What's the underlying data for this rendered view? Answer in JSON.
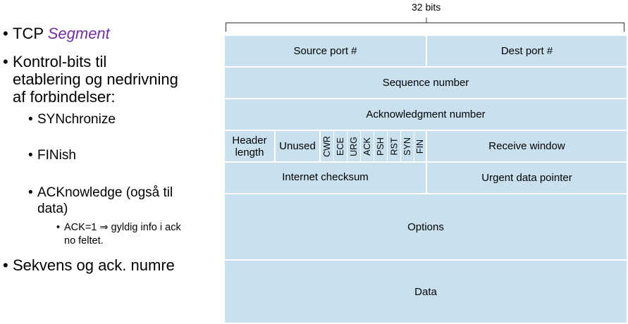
{
  "bullets": {
    "tcp_prefix": "TCP ",
    "tcp_segment": "Segment",
    "kontrol_line1": "Kontrol-bits til",
    "kontrol_line2": "etablering og nedrivning",
    "kontrol_line3": "af forbindelser:",
    "syn": "SYNchronize",
    "fin": "FINish",
    "ack_line1": "ACKnowledge (også til",
    "ack_line2": "data)",
    "ack_detail_line1": "ACK=1 ⇒ gyldig info i ack",
    "ack_detail_line2": "no feltet.",
    "sekvens": "Sekvens og ack. numre",
    "bullet_char": "•"
  },
  "diagram": {
    "width_label": "32 bits",
    "fields": {
      "source_port": "Source port #",
      "dest_port": "Dest port #",
      "sequence_number": "Sequence number",
      "ack_number": "Acknowledgment number",
      "header_length_line1": "Header",
      "header_length_line2": "length",
      "unused": "Unused",
      "receive_window": "Receive window",
      "checksum": "Internet checksum",
      "urgent_pointer": "Urgent data pointer",
      "options": "Options",
      "data": "Data"
    },
    "flags": [
      "CWR",
      "ECE",
      "URG",
      "ACK",
      "PSH",
      "RST",
      "SYN",
      "FIN"
    ],
    "colors": {
      "field_fill": "#c9e1ef",
      "accent": "#7030a0"
    }
  }
}
